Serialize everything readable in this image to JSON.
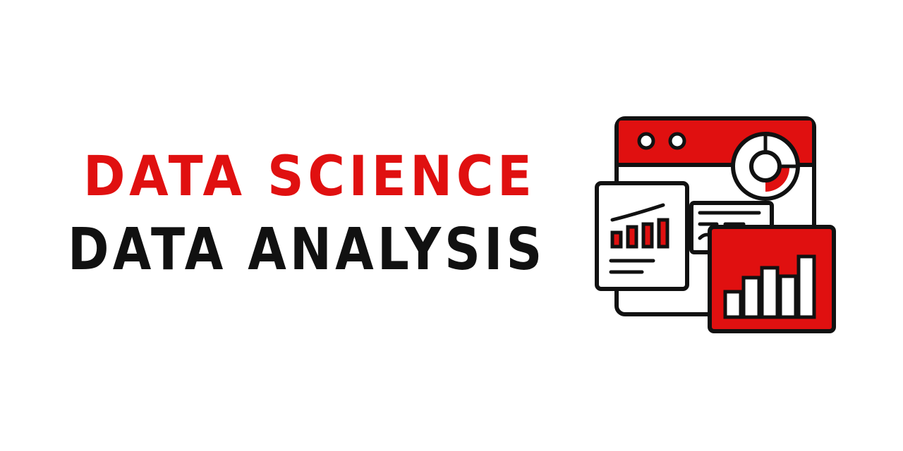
{
  "title": {
    "line1": "DATA SCIENCE",
    "line2": "DATA ANALYSIS"
  },
  "colors": {
    "accent_red": "#e01010",
    "ink_black": "#111111",
    "background": "#ffffff"
  },
  "illustration": {
    "icon": "data-dashboard-icon"
  }
}
